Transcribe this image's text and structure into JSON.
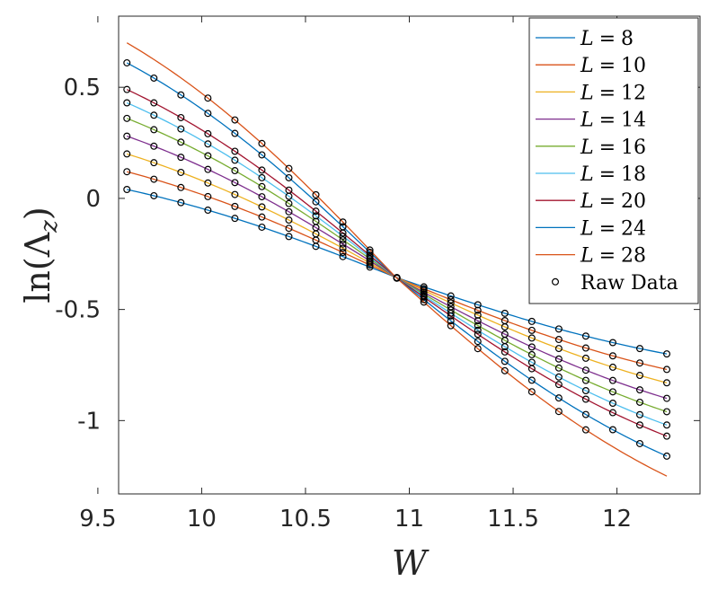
{
  "chart_data": {
    "type": "line",
    "title": "",
    "xlabel": "W",
    "ylabel": "ln(Λ_z)",
    "ylabel_parts": {
      "func": "ln(",
      "sym": "Λ",
      "sub": "z",
      "close": ")"
    },
    "xlim": [
      9.6,
      12.4
    ],
    "ylim": [
      -1.33,
      0.82
    ],
    "xticks": [
      9.5,
      10,
      10.5,
      11,
      11.5,
      12
    ],
    "xtick_labels": [
      "9.5",
      "10",
      "10.5",
      "11",
      "11.5",
      "12"
    ],
    "yticks": [
      -1,
      -0.5,
      0,
      0.5
    ],
    "ytick_labels": [
      "-1",
      "-0.5",
      "0",
      "0.5"
    ],
    "grid": false,
    "legend_position": "top-right",
    "crossing_point": {
      "x": 10.935,
      "y": -0.355
    },
    "x_min": 9.64,
    "x_max": 12.24,
    "raw_x": [
      9.64,
      9.77,
      9.9,
      10.03,
      10.16,
      10.29,
      10.42,
      10.55,
      10.68,
      10.81,
      10.94,
      11.07,
      11.2,
      11.33,
      11.46,
      11.59,
      11.72,
      11.85,
      11.98,
      12.11,
      12.24
    ],
    "series": [
      {
        "name": "L = 8",
        "L": "L",
        "eq": "=",
        "num": "8",
        "color": "#0072BD",
        "values_left": 0.04,
        "values_right": -0.7,
        "raw_limit": [
          -1,
          0
        ]
      },
      {
        "name": "L = 10",
        "L": "L",
        "eq": "=",
        "num": "10",
        "color": "#D95319",
        "values_left": 0.12,
        "values_right": -0.77,
        "raw_limit": [
          0,
          0
        ]
      },
      {
        "name": "L = 12",
        "L": "L",
        "eq": "=",
        "num": "12",
        "color": "#EDB120",
        "values_left": 0.2,
        "values_right": -0.83,
        "raw_limit": [
          0,
          0
        ]
      },
      {
        "name": "L = 14",
        "L": "L",
        "eq": "=",
        "num": "14",
        "color": "#7E2F8E",
        "values_left": 0.28,
        "values_right": -0.9,
        "raw_limit": [
          0,
          0
        ]
      },
      {
        "name": "L = 16",
        "L": "L",
        "eq": "=",
        "num": "16",
        "color": "#77AC30",
        "values_left": 0.36,
        "values_right": -0.96,
        "raw_limit": [
          0,
          0
        ]
      },
      {
        "name": "L = 18",
        "L": "L",
        "eq": "=",
        "num": "18",
        "color": "#4DBEEE",
        "values_left": 0.43,
        "values_right": -1.02,
        "raw_limit": [
          0,
          0
        ]
      },
      {
        "name": "L = 20",
        "L": "L",
        "eq": "=",
        "num": "20",
        "color": "#A2142F",
        "values_left": 0.49,
        "values_right": -1.07,
        "raw_limit": [
          0,
          0
        ]
      },
      {
        "name": "L = 24",
        "L": "L",
        "eq": "=",
        "num": "24",
        "color": "#0072BD",
        "values_left": 0.61,
        "values_right": -1.16,
        "raw_limit": [
          0,
          0
        ]
      },
      {
        "name": "L = 28",
        "L": "L",
        "eq": "=",
        "num": "28",
        "color": "#D95319",
        "values_left": 0.7,
        "values_right": -1.25,
        "raw_limit": [
          10.0,
          11.9
        ]
      }
    ],
    "raw_label": "Raw Data"
  }
}
